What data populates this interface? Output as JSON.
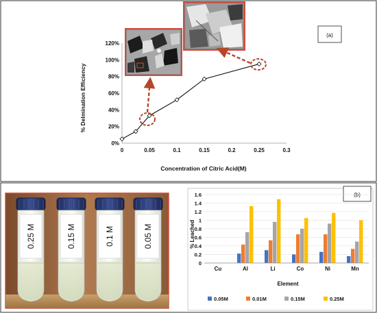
{
  "panel_a_label": "(a)",
  "panel_b_label": "(b)",
  "chart_data": [
    {
      "type": "line",
      "xlabel": "Concentration of Citric Acid(M)",
      "ylabel": "% Delmination Efficiency",
      "x_ticks": [
        "0",
        "0.05",
        "0.1",
        "0.15",
        "0.2",
        "0.25",
        "0.3"
      ],
      "y_ticks": [
        "0%",
        "20%",
        "40%",
        "60%",
        "80%",
        "100%",
        "120%"
      ],
      "xlim": [
        0,
        0.3
      ],
      "ylim": [
        0,
        120
      ],
      "x": [
        0,
        0.025,
        0.05,
        0.1,
        0.15,
        0.25
      ],
      "y": [
        5,
        14,
        33,
        52,
        77,
        95
      ],
      "grid": false
    },
    {
      "type": "bar",
      "xlabel": "Element",
      "ylabel": "% Leached",
      "categories": [
        "Cu",
        "Al",
        "Li",
        "Co",
        "Ni",
        "Mn"
      ],
      "y_ticks": [
        "0",
        "0.2",
        "0.4",
        "0.6",
        "0.8",
        "1",
        "1.2",
        "1.4",
        "1.6"
      ],
      "ylim": [
        0,
        1.6
      ],
      "legend_position": "bottom",
      "grid": true,
      "series": [
        {
          "name": "0.05M",
          "color": "#4472C4",
          "values": [
            0,
            0.22,
            0.3,
            0.2,
            0.26,
            0.16
          ]
        },
        {
          "name": "0.01M",
          "color": "#ED7D31",
          "values": [
            0,
            0.43,
            0.53,
            0.67,
            0.67,
            0.33
          ]
        },
        {
          "name": "0.15M",
          "color": "#A5A5A5",
          "values": [
            0,
            0.72,
            0.96,
            0.8,
            0.92,
            0.5
          ]
        },
        {
          "name": "0.25M",
          "color": "#FFC000",
          "values": [
            0,
            1.33,
            1.49,
            1.05,
            1.17,
            1.0
          ]
        }
      ]
    }
  ],
  "vial_labels": [
    "0.25 M",
    "0.15 M",
    "0.1 M",
    "0.05 M"
  ]
}
